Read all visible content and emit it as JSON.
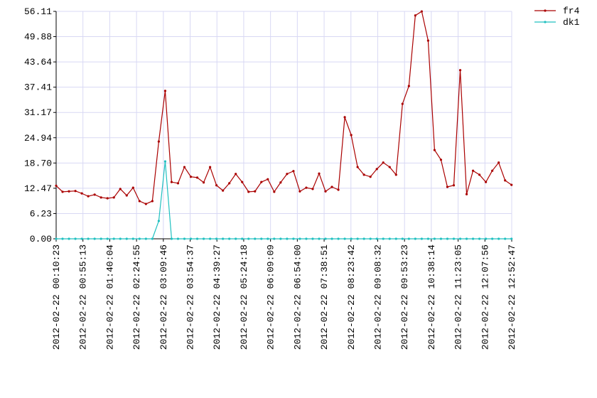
{
  "chart_data": {
    "type": "line",
    "grid": true,
    "legend": "top-right",
    "x": [
      "2012-02-22 00:10:23",
      "2012-02-22 00:21:07",
      "2012-02-22 00:31:51",
      "2012-02-22 00:42:35",
      "2012-02-22 00:53:19",
      "2012-02-22 01:04:03",
      "2012-02-22 01:14:47",
      "2012-02-22 01:25:31",
      "2012-02-22 01:36:15",
      "2012-02-22 01:46:59",
      "2012-02-22 01:57:43",
      "2012-02-22 02:08:27",
      "2012-02-22 02:19:11",
      "2012-02-22 02:29:55",
      "2012-02-22 02:40:39",
      "2012-02-22 02:51:23",
      "2012-02-22 03:02:07",
      "2012-02-22 03:12:51",
      "2012-02-22 03:23:35",
      "2012-02-22 03:34:19",
      "2012-02-22 03:45:03",
      "2012-02-22 03:55:47",
      "2012-02-22 04:06:31",
      "2012-02-22 04:17:15",
      "2012-02-22 04:27:59",
      "2012-02-22 04:38:43",
      "2012-02-22 04:49:27",
      "2012-02-22 05:00:11",
      "2012-02-22 05:10:55",
      "2012-02-22 05:21:39",
      "2012-02-22 05:32:23",
      "2012-02-22 05:43:07",
      "2012-02-22 05:53:51",
      "2012-02-22 06:04:35",
      "2012-02-22 06:15:19",
      "2012-02-22 06:26:03",
      "2012-02-22 06:36:47",
      "2012-02-22 06:47:31",
      "2012-02-22 06:58:15",
      "2012-02-22 07:08:59",
      "2012-02-22 07:19:43",
      "2012-02-22 07:30:27",
      "2012-02-22 07:41:11",
      "2012-02-22 07:51:55",
      "2012-02-22 08:02:39",
      "2012-02-22 08:13:23",
      "2012-02-22 08:24:07",
      "2012-02-22 08:34:51",
      "2012-02-22 08:45:35",
      "2012-02-22 08:56:19",
      "2012-02-22 09:07:03",
      "2012-02-22 09:17:47",
      "2012-02-22 09:28:31",
      "2012-02-22 09:39:15",
      "2012-02-22 09:49:59",
      "2012-02-22 10:00:43",
      "2012-02-22 10:11:27",
      "2012-02-22 10:22:11",
      "2012-02-22 10:32:55",
      "2012-02-22 10:43:39",
      "2012-02-22 10:54:23",
      "2012-02-22 11:05:07",
      "2012-02-22 11:15:51",
      "2012-02-22 11:26:35",
      "2012-02-22 11:37:19",
      "2012-02-22 11:48:03",
      "2012-02-22 11:58:47",
      "2012-02-22 12:09:31",
      "2012-02-22 12:20:15",
      "2012-02-22 12:30:59",
      "2012-02-22 12:41:43",
      "2012-02-22 12:52:27"
    ],
    "series": [
      {
        "name": "fr4",
        "color": "#aa0000",
        "values": [
          13.1,
          11.6,
          11.7,
          11.8,
          11.2,
          10.5,
          10.9,
          10.2,
          10.0,
          10.2,
          12.3,
          10.7,
          12.6,
          9.3,
          8.6,
          9.3,
          24.0,
          36.5,
          14.0,
          13.7,
          17.7,
          15.3,
          15.1,
          13.9,
          17.7,
          13.2,
          11.9,
          13.7,
          16.0,
          14.0,
          11.6,
          11.7,
          14.0,
          14.7,
          11.6,
          13.9,
          16.0,
          16.7,
          11.7,
          12.6,
          12.3,
          16.1,
          11.7,
          12.8,
          12.1,
          30.0,
          25.6,
          17.7,
          15.8,
          15.3,
          17.2,
          18.8,
          17.7,
          15.8,
          33.3,
          37.7,
          55.1,
          56.1,
          48.9,
          21.9,
          19.5,
          12.8,
          13.2,
          41.6,
          11.0,
          16.8,
          15.8,
          14.0,
          16.8,
          18.8,
          14.4,
          13.3
        ]
      },
      {
        "name": "dk1",
        "color": "#20c0c0",
        "values": [
          0,
          0,
          0,
          0,
          0,
          0,
          0,
          0,
          0,
          0,
          0,
          0,
          0,
          0,
          0,
          0,
          4.4,
          19.1,
          0,
          0,
          0,
          0,
          0,
          0,
          0,
          0,
          0,
          0,
          0,
          0,
          0,
          0,
          0,
          0,
          0,
          0,
          0,
          0,
          0,
          0,
          0,
          0,
          0,
          0,
          0,
          0,
          0,
          0,
          0,
          0,
          0,
          0,
          0,
          0,
          0,
          0,
          0,
          0,
          0,
          0,
          0,
          0,
          0,
          0,
          0,
          0,
          0,
          0,
          0,
          0,
          0,
          0
        ]
      }
    ],
    "xlim": [
      "2012-02-22 00:10:23",
      "2012-02-22 12:52:47"
    ],
    "xticks": [
      "2012-02-22 00:10:23",
      "2012-02-22 00:55:13",
      "2012-02-22 01:40:04",
      "2012-02-22 02:24:55",
      "2012-02-22 03:09:46",
      "2012-02-22 03:54:37",
      "2012-02-22 04:39:27",
      "2012-02-22 05:24:18",
      "2012-02-22 06:09:09",
      "2012-02-22 06:54:00",
      "2012-02-22 07:38:51",
      "2012-02-22 08:23:42",
      "2012-02-22 09:08:32",
      "2012-02-22 09:53:23",
      "2012-02-22 10:38:14",
      "2012-02-22 11:23:05",
      "2012-02-22 12:07:56",
      "2012-02-22 12:52:47"
    ],
    "ylim": [
      0,
      56.11
    ],
    "yticks": [
      {
        "value": 0,
        "label": "0.00"
      },
      6.23,
      12.47,
      {
        "value": 18.7,
        "label": "18.70"
      },
      24.94,
      31.17,
      37.41,
      43.64,
      49.88,
      56.11
    ]
  }
}
